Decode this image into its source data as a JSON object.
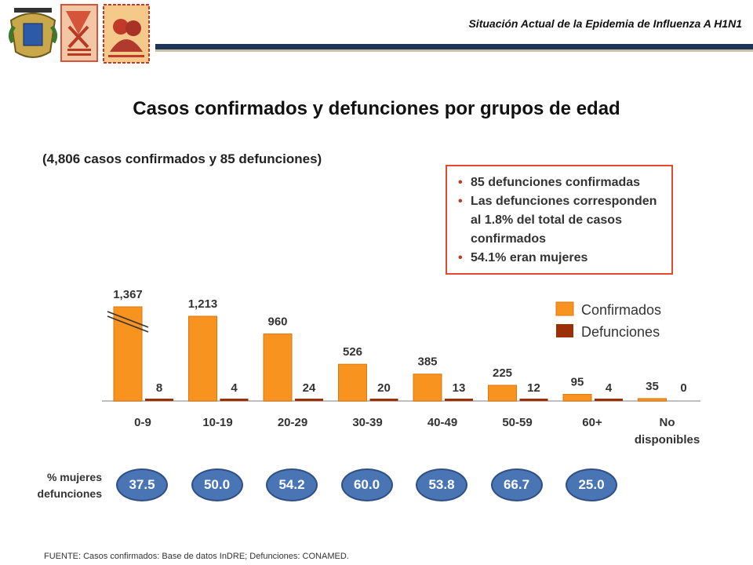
{
  "header": {
    "title": "Situación Actual de la Epidemia de Influenza A H1N1",
    "logos": [
      "university-seal-logo",
      "medicine-faculty-logo",
      "family-medicine-logo"
    ]
  },
  "main_title": "Casos confirmados y defunciones por grupos de edad",
  "subtitle": "(4,806 casos confirmados y 85 defunciones)",
  "notes": [
    "85 defunciones confirmadas",
    "Las defunciones corresponden al 1.8% del total de casos confirmados",
    "54.1% eran mujeres"
  ],
  "colors": {
    "confirmados": "#f7931e",
    "defunciones": "#9b2f06",
    "oval": "#4a75b5",
    "notes_border": "#e24a33"
  },
  "chart_data": {
    "type": "bar",
    "categories": [
      "0-9",
      "10-19",
      "20-29",
      "30-39",
      "40-49",
      "50-59",
      "60+",
      "No disponibles"
    ],
    "series": [
      {
        "name": "Confirmados",
        "values": [
          1367,
          1213,
          960,
          526,
          385,
          225,
          95,
          35
        ],
        "labels": [
          "1,367",
          "1,213",
          "960",
          "526",
          "385",
          "225",
          "95",
          "35"
        ]
      },
      {
        "name": "Defunciones",
        "values": [
          8,
          4,
          24,
          20,
          13,
          12,
          4,
          0
        ],
        "labels": [
          "8",
          "4",
          "24",
          "20",
          "13",
          "12",
          "4",
          "0"
        ]
      }
    ],
    "axis_break_first_bar": true,
    "legend_position": "right",
    "pct_mujeres_label": "% mujeres defunciones",
    "pct_mujeres": [
      "37.5",
      "50.0",
      "54.2",
      "60.0",
      "53.8",
      "66.7",
      "25.0"
    ]
  },
  "source": "FUENTE: Casos confirmados: Base de datos InDRE; Defunciones: CONAMED."
}
